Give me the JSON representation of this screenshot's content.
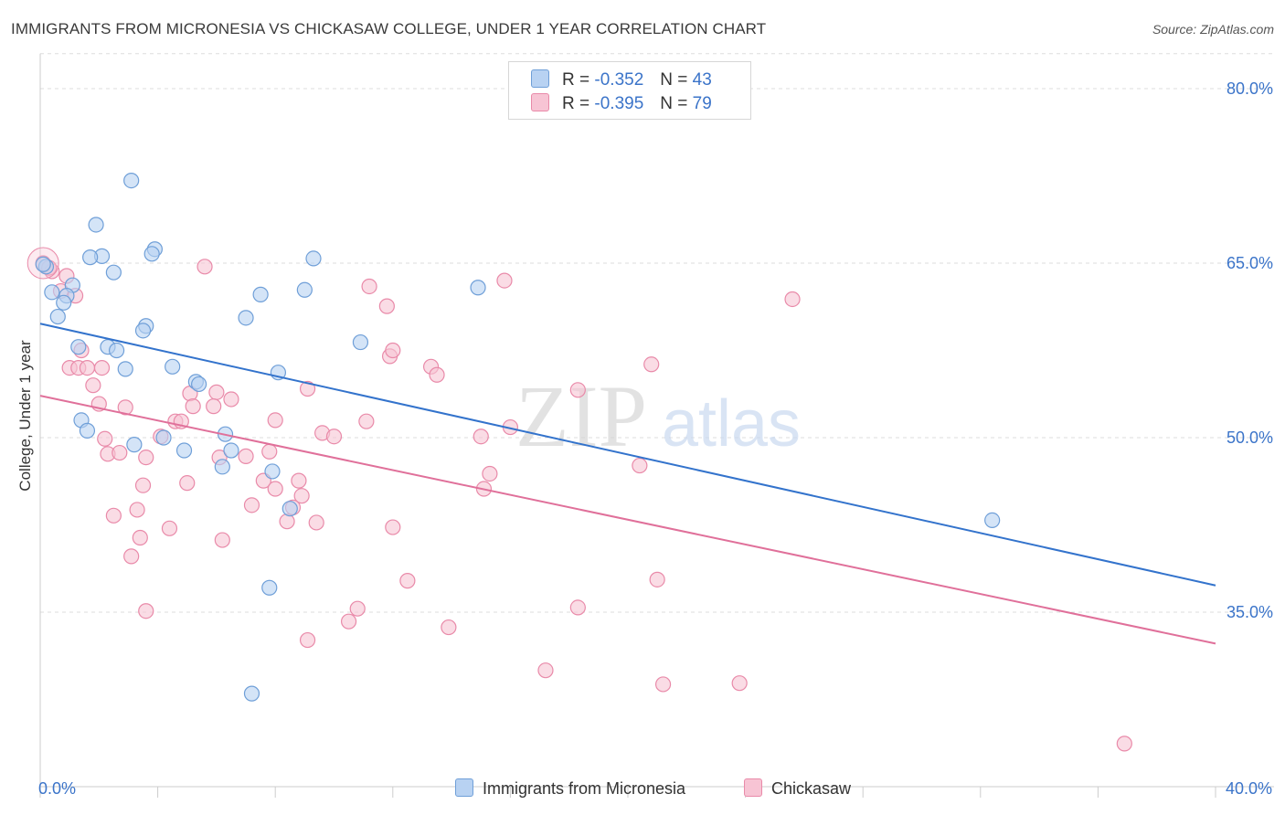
{
  "title": "IMMIGRANTS FROM MICRONESIA VS CHICKASAW COLLEGE, UNDER 1 YEAR CORRELATION CHART",
  "source": "Source: ZipAtlas.com",
  "watermark": {
    "zip": "ZIP",
    "atlas": "atlas"
  },
  "colors": {
    "blue_fill": "#b8d2f2",
    "blue_stroke": "#6f9fd8",
    "blue_line": "#3373cc",
    "pink_fill": "#f7c4d4",
    "pink_stroke": "#e98aa9",
    "pink_line": "#e0709a",
    "tick_label": "#3b74c9",
    "grid": "#dddddd"
  },
  "legend_top": {
    "rows": [
      {
        "r_label": "R =",
        "r_value": "-0.352",
        "n_label": "N =",
        "n_value": "43"
      },
      {
        "r_label": "R =",
        "r_value": "-0.395",
        "n_label": "N =",
        "n_value": "79"
      }
    ]
  },
  "legend_bottom": [
    "Immigrants from Micronesia",
    "Chickasaw"
  ],
  "chart_data": {
    "type": "scatter",
    "title": "IMMIGRANTS FROM MICRONESIA VS CHICKASAW COLLEGE, UNDER 1 YEAR CORRELATION CHART",
    "xlabel": "",
    "ylabel": "College, Under 1 year",
    "xlim": [
      0,
      40
    ],
    "ylim": [
      20,
      83
    ],
    "x_tick_labels": [
      {
        "value": 0,
        "label": "0.0%"
      },
      {
        "value": 40,
        "label": "40.0%"
      }
    ],
    "y_tick_labels": [
      {
        "value": 80,
        "label": "80.0%"
      },
      {
        "value": 65,
        "label": "65.0%"
      },
      {
        "value": 50,
        "label": "50.0%"
      },
      {
        "value": 35,
        "label": "35.0%"
      }
    ],
    "grid": true,
    "legend_position": "top-center and bottom",
    "series": [
      {
        "name": "Immigrants from Micronesia",
        "R": -0.352,
        "N": 43,
        "trend": {
          "x": [
            0,
            40
          ],
          "y": [
            59.8,
            37.3
          ]
        },
        "points": [
          [
            3.1,
            72.1
          ],
          [
            1.9,
            68.3
          ],
          [
            2.1,
            65.6
          ],
          [
            1.7,
            65.5
          ],
          [
            3.9,
            66.2
          ],
          [
            3.8,
            65.8
          ],
          [
            2.5,
            64.2
          ],
          [
            0.2,
            64.7
          ],
          [
            0.4,
            62.5
          ],
          [
            1.1,
            63.1
          ],
          [
            0.9,
            62.2
          ],
          [
            0.8,
            61.6
          ],
          [
            0.6,
            60.4
          ],
          [
            9.3,
            65.4
          ],
          [
            9.0,
            62.7
          ],
          [
            7.5,
            62.3
          ],
          [
            7.0,
            60.3
          ],
          [
            3.6,
            59.6
          ],
          [
            3.5,
            59.2
          ],
          [
            1.3,
            57.8
          ],
          [
            2.3,
            57.8
          ],
          [
            2.6,
            57.5
          ],
          [
            10.9,
            58.2
          ],
          [
            14.9,
            62.9
          ],
          [
            4.5,
            56.1
          ],
          [
            2.9,
            55.9
          ],
          [
            8.1,
            55.6
          ],
          [
            5.3,
            54.8
          ],
          [
            5.4,
            54.6
          ],
          [
            1.4,
            51.5
          ],
          [
            1.6,
            50.6
          ],
          [
            4.2,
            50.0
          ],
          [
            3.2,
            49.4
          ],
          [
            4.9,
            48.9
          ],
          [
            6.3,
            50.3
          ],
          [
            6.5,
            48.9
          ],
          [
            6.2,
            47.5
          ],
          [
            7.9,
            47.1
          ],
          [
            8.5,
            43.9
          ],
          [
            7.8,
            37.1
          ],
          [
            7.2,
            28.0
          ],
          [
            32.4,
            42.9
          ],
          [
            0.1,
            64.9
          ]
        ]
      },
      {
        "name": "Chickasaw",
        "R": -0.395,
        "N": 79,
        "trend": {
          "x": [
            0,
            40
          ],
          "y": [
            53.6,
            32.3
          ]
        },
        "points": [
          [
            0.1,
            65.0
          ],
          [
            0.4,
            64.3
          ],
          [
            0.7,
            62.6
          ],
          [
            0.9,
            63.9
          ],
          [
            1.2,
            62.2
          ],
          [
            5.6,
            64.7
          ],
          [
            11.2,
            63.0
          ],
          [
            11.8,
            61.3
          ],
          [
            15.8,
            63.5
          ],
          [
            25.6,
            61.9
          ],
          [
            1.4,
            57.5
          ],
          [
            1.0,
            56.0
          ],
          [
            1.3,
            56.0
          ],
          [
            1.6,
            56.0
          ],
          [
            1.8,
            54.5
          ],
          [
            11.9,
            57.0
          ],
          [
            12.0,
            57.5
          ],
          [
            13.3,
            56.1
          ],
          [
            13.5,
            55.4
          ],
          [
            20.8,
            56.3
          ],
          [
            2.0,
            52.9
          ],
          [
            2.9,
            52.6
          ],
          [
            5.1,
            53.8
          ],
          [
            6.0,
            53.9
          ],
          [
            6.5,
            53.3
          ],
          [
            9.1,
            54.2
          ],
          [
            18.3,
            54.1
          ],
          [
            4.6,
            51.4
          ],
          [
            4.8,
            51.4
          ],
          [
            5.2,
            52.7
          ],
          [
            5.9,
            52.7
          ],
          [
            8.0,
            51.5
          ],
          [
            11.1,
            51.4
          ],
          [
            2.2,
            49.9
          ],
          [
            2.3,
            48.6
          ],
          [
            2.7,
            48.7
          ],
          [
            4.1,
            50.1
          ],
          [
            3.6,
            48.3
          ],
          [
            6.1,
            48.3
          ],
          [
            7.0,
            48.4
          ],
          [
            7.8,
            48.8
          ],
          [
            9.6,
            50.4
          ],
          [
            10.0,
            50.1
          ],
          [
            15.0,
            50.1
          ],
          [
            16.0,
            50.9
          ],
          [
            20.4,
            47.6
          ],
          [
            3.5,
            45.9
          ],
          [
            5.0,
            46.1
          ],
          [
            7.6,
            46.3
          ],
          [
            8.0,
            45.6
          ],
          [
            8.9,
            45.0
          ],
          [
            8.8,
            46.3
          ],
          [
            15.3,
            46.9
          ],
          [
            15.1,
            45.6
          ],
          [
            2.5,
            43.3
          ],
          [
            3.3,
            43.8
          ],
          [
            4.4,
            42.2
          ],
          [
            6.2,
            41.2
          ],
          [
            7.2,
            44.2
          ],
          [
            8.4,
            42.8
          ],
          [
            8.6,
            44.0
          ],
          [
            9.4,
            42.7
          ],
          [
            12.0,
            42.3
          ],
          [
            3.4,
            41.4
          ],
          [
            3.1,
            39.8
          ],
          [
            12.5,
            37.7
          ],
          [
            21.0,
            37.8
          ],
          [
            3.6,
            35.1
          ],
          [
            10.8,
            35.3
          ],
          [
            10.5,
            34.2
          ],
          [
            13.9,
            33.7
          ],
          [
            9.1,
            32.6
          ],
          [
            18.3,
            35.4
          ],
          [
            17.2,
            30.0
          ],
          [
            21.2,
            28.8
          ],
          [
            23.8,
            28.9
          ],
          [
            36.9,
            23.7
          ],
          [
            0.3,
            64.6
          ],
          [
            2.1,
            56.0
          ]
        ]
      }
    ]
  }
}
